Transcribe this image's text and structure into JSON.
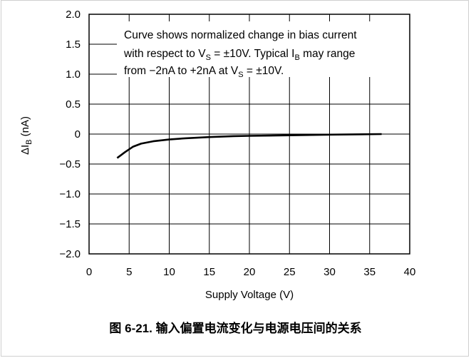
{
  "chart_data": {
    "type": "line",
    "xlabel": "Supply Voltage (V)",
    "ylabel": "ΔI_B (nA)",
    "xlim": [
      0,
      40
    ],
    "ylim": [
      -2.0,
      2.0
    ],
    "x_ticks": [
      "0",
      "5",
      "10",
      "15",
      "20",
      "25",
      "30",
      "35",
      "40"
    ],
    "y_ticks": [
      "2.0",
      "1.5",
      "1.0",
      "0.5",
      "0",
      "−0.5",
      "−1.0",
      "−1.5",
      "−2.0"
    ],
    "grid": true,
    "annotation_lines": [
      "Curve shows normalized change in bias current",
      "with respect to V_S = ±10V. Typical I_B may range",
      "from −2nA to +2nA at V_S = ±10V."
    ],
    "series": [
      {
        "values_xy": [
          [
            3.5,
            -0.4
          ],
          [
            4.5,
            -0.3
          ],
          [
            5.5,
            -0.21
          ],
          [
            6.5,
            -0.16
          ],
          [
            8,
            -0.12
          ],
          [
            10,
            -0.09
          ],
          [
            12,
            -0.07
          ],
          [
            15,
            -0.05
          ],
          [
            18,
            -0.035
          ],
          [
            20,
            -0.03
          ],
          [
            25,
            -0.02
          ],
          [
            30,
            -0.01
          ],
          [
            36.5,
            0.0
          ]
        ]
      }
    ]
  },
  "caption": "图 6-21. 输入偏置电流变化与电源电压间的关系"
}
